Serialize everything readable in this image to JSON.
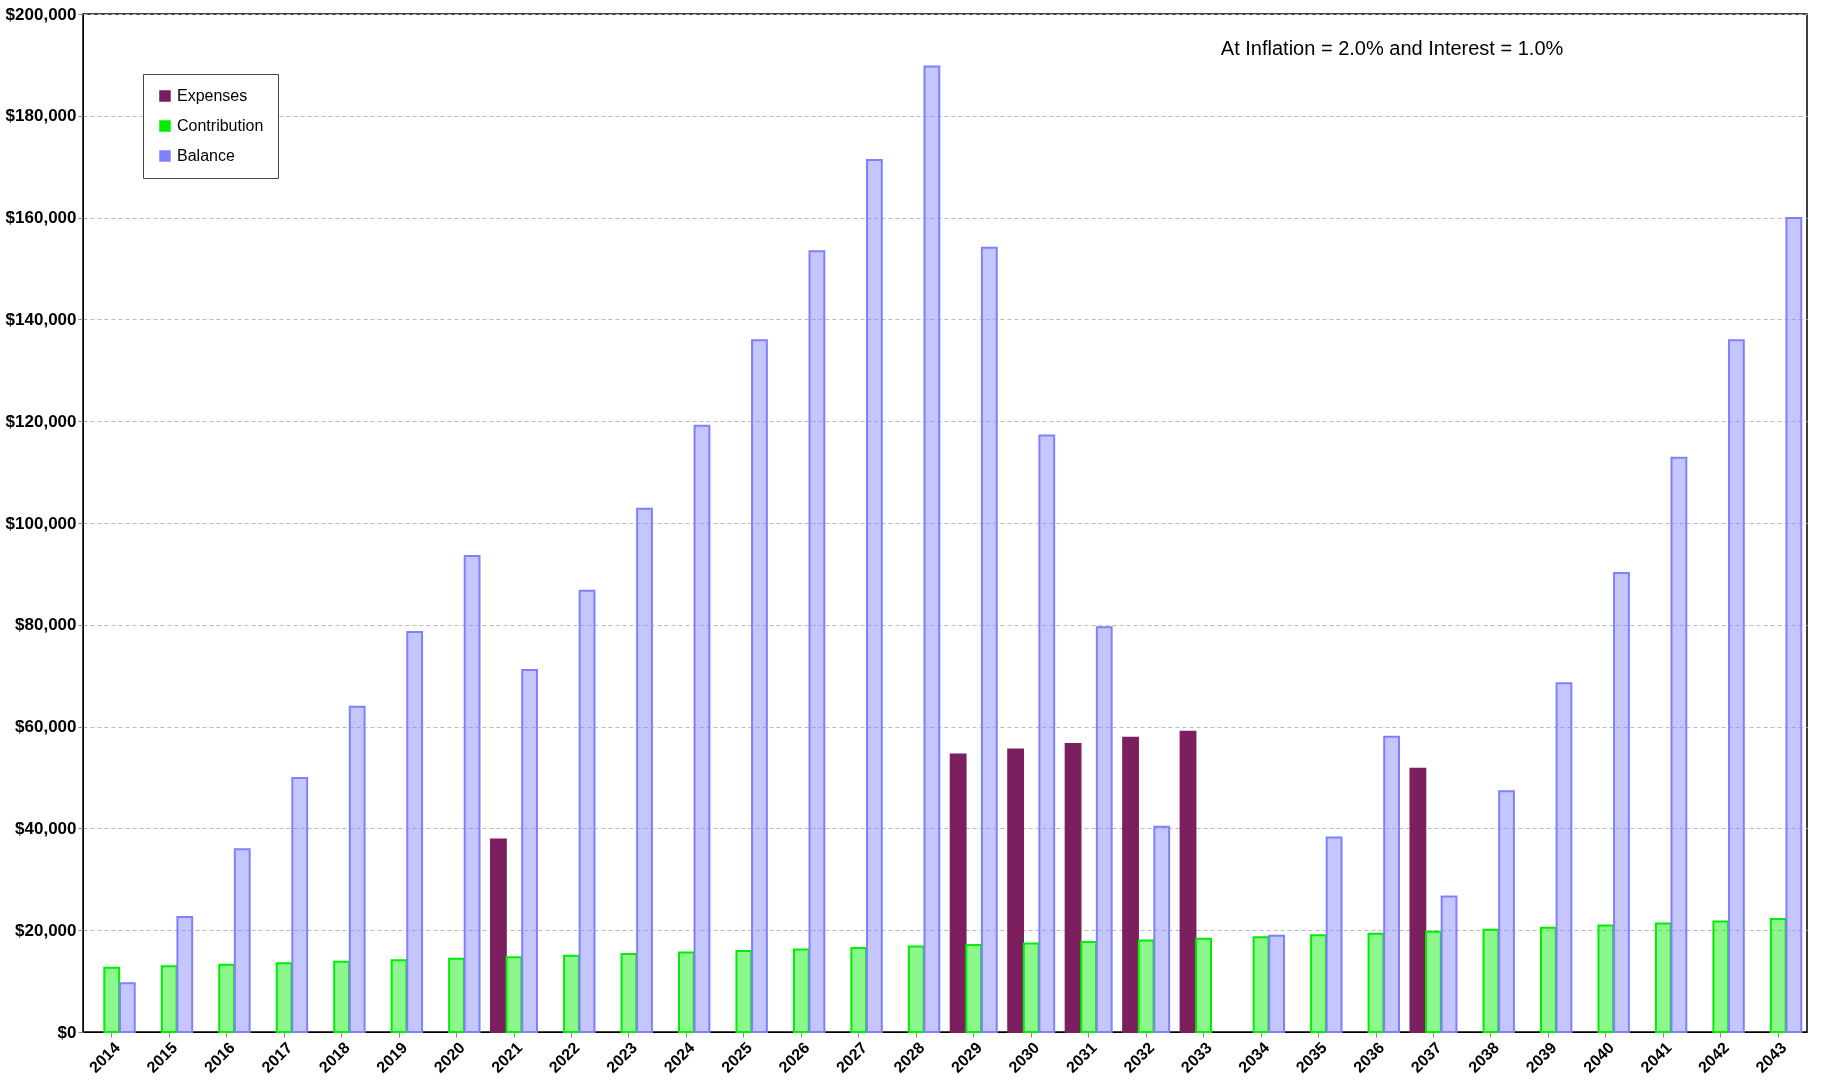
{
  "chart_data": {
    "type": "bar",
    "annotations": [
      "At Inflation = 2.0% and Interest = 1.0%"
    ],
    "categories": [
      "2014",
      "2015",
      "2016",
      "2017",
      "2018",
      "2019",
      "2020",
      "2021",
      "2022",
      "2023",
      "2024",
      "2025",
      "2026",
      "2027",
      "2028",
      "2029",
      "2030",
      "2031",
      "2032",
      "2033",
      "2034",
      "2035",
      "2036",
      "2037",
      "2038",
      "2039",
      "2040",
      "2041",
      "2042",
      "2043"
    ],
    "series": [
      {
        "name": "Expenses",
        "color": "#7b1f5e",
        "values": [
          null,
          null,
          null,
          null,
          null,
          null,
          null,
          37800,
          null,
          null,
          null,
          null,
          null,
          null,
          null,
          54500,
          55500,
          56600,
          57800,
          59000,
          null,
          null,
          null,
          51700,
          null,
          null,
          null,
          null,
          null,
          null
        ]
      },
      {
        "name": "Contribution",
        "color": "#00ee00",
        "values": [
          12600,
          12900,
          13200,
          13500,
          13800,
          14100,
          14400,
          14700,
          15000,
          15300,
          15600,
          15900,
          16200,
          16500,
          16800,
          17100,
          17400,
          17700,
          18000,
          18300,
          18600,
          19000,
          19300,
          19700,
          20100,
          20500,
          20900,
          21300,
          21700,
          22200
        ]
      },
      {
        "name": "Balance",
        "color": "#8080ff",
        "values": [
          9600,
          22600,
          35900,
          49900,
          63900,
          78600,
          93500,
          71100,
          86700,
          102800,
          119100,
          135900,
          153400,
          171300,
          189700,
          154100,
          117200,
          79500,
          40300,
          null,
          18900,
          38200,
          58000,
          26600,
          47300,
          68500,
          90200,
          112800,
          135900,
          159900
        ]
      }
    ],
    "ylim": [
      0,
      200000
    ],
    "yticks": [
      {
        "value": 0,
        "label": "$0"
      },
      {
        "value": 20000,
        "label": "$20,000"
      },
      {
        "value": 40000,
        "label": "$40,000"
      },
      {
        "value": 60000,
        "label": "$60,000"
      },
      {
        "value": 80000,
        "label": "$80,000"
      },
      {
        "value": 100000,
        "label": "$100,000"
      },
      {
        "value": 120000,
        "label": "$120,000"
      },
      {
        "value": 140000,
        "label": "$140,000"
      },
      {
        "value": 160000,
        "label": "$160,000"
      },
      {
        "value": 180000,
        "label": "$180,000"
      },
      {
        "value": 200000,
        "label": "$200,000"
      }
    ],
    "grid": "y",
    "legend": "top left"
  }
}
